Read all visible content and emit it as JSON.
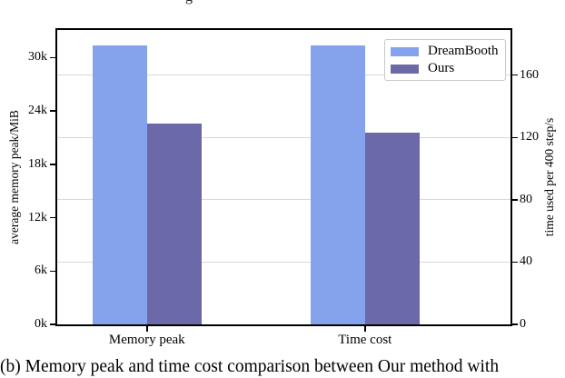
{
  "fragment": {
    "text": "g"
  },
  "chart_data": {
    "type": "bar",
    "title": "",
    "categories": [
      "Memory peak",
      "Time cost"
    ],
    "category_units": [
      "MiB",
      "s"
    ],
    "category_axis": [
      "left",
      "right"
    ],
    "series": [
      {
        "name": "DreamBooth",
        "color": "#85a3ec",
        "values": [
          31400,
          179
        ]
      },
      {
        "name": "Ours",
        "color": "#6b69a7",
        "values": [
          22600,
          123
        ]
      }
    ],
    "left_axis": {
      "label": "average memory peak/MiB",
      "ticks": [
        0,
        6000,
        12000,
        18000,
        24000,
        30000
      ],
      "tick_labels": [
        "0k",
        "6k",
        "12k",
        "18k",
        "24k",
        "30k"
      ],
      "max": 33100,
      "grid": false
    },
    "right_axis": {
      "label": "time used per 400 step/s",
      "ticks": [
        0,
        40,
        80,
        120,
        160
      ],
      "tick_labels": [
        "0",
        "40",
        "80",
        "120",
        "160"
      ],
      "max": 189,
      "grid": true
    },
    "legend": {
      "position": "upper right",
      "entries": [
        "DreamBooth",
        "Ours"
      ]
    },
    "grid_color": "#d8d8d8"
  },
  "caption": {
    "text": "(b) Memory peak and time cost comparison between Our method with"
  }
}
